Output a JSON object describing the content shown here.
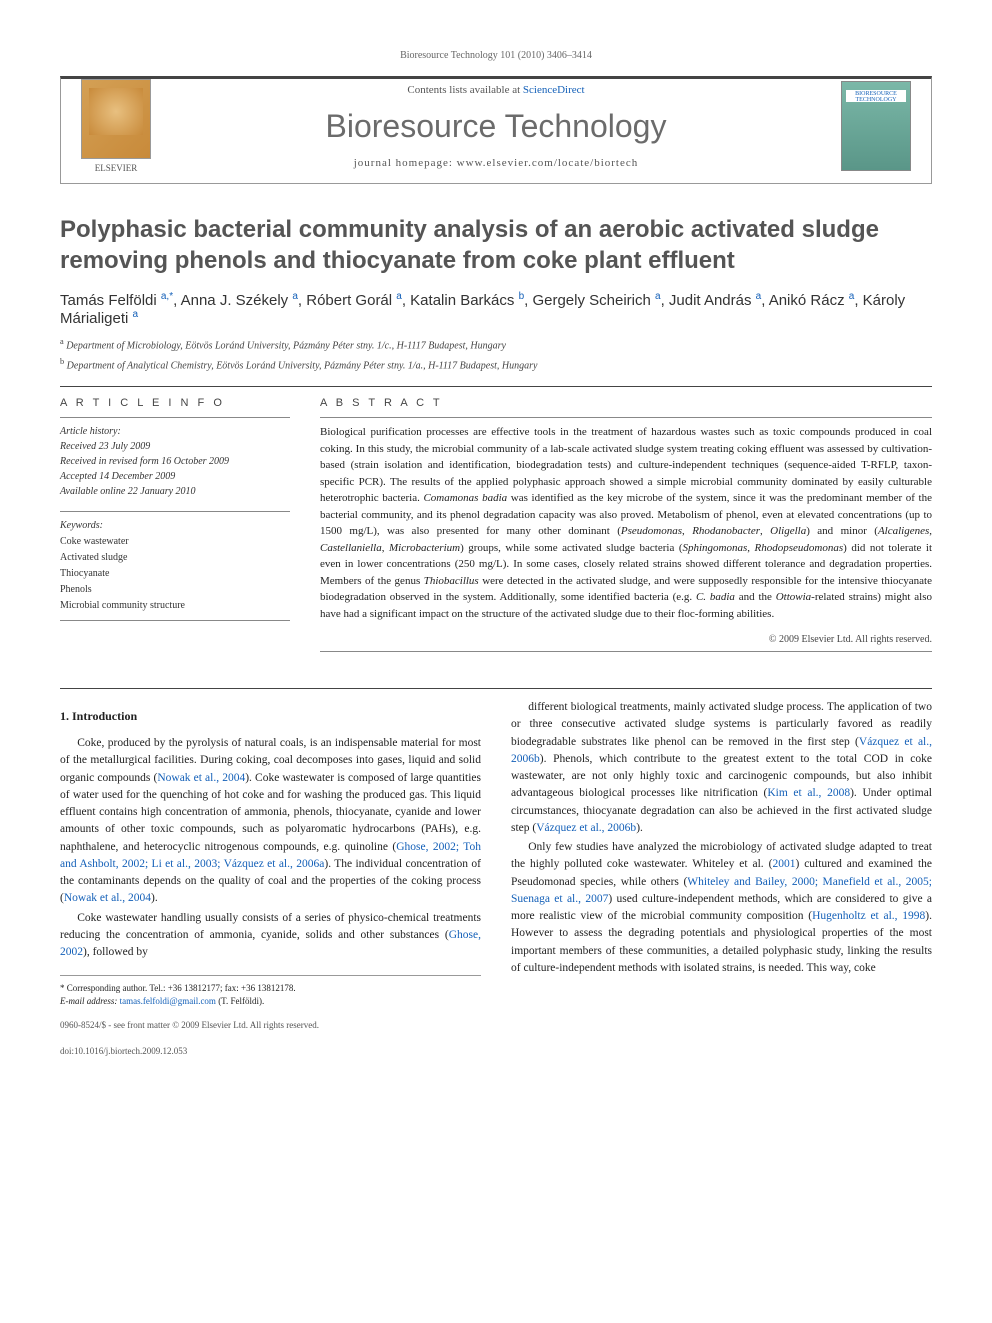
{
  "page_header": "Bioresource Technology 101 (2010) 3406–3414",
  "banner": {
    "contents_text": "Contents lists available at ",
    "contents_link": "ScienceDirect",
    "journal_name": "Bioresource Technology",
    "homepage_label": "journal homepage: ",
    "homepage_url": "www.elsevier.com/locate/biortech",
    "publisher": "ELSEVIER",
    "cover_text": "BIORESOURCE TECHNOLOGY"
  },
  "article": {
    "title": "Polyphasic bacterial community analysis of an aerobic activated sludge removing phenols and thiocyanate from coke plant effluent",
    "authors_html": "Tamás Felföldi <sup>a,*</sup>, Anna J. Székely <sup>a</sup>, Róbert Gorál <sup>a</sup>, Katalin Barkács <sup>b</sup>, Gergely Scheirich <sup>a</sup>, Judit András <sup>a</sup>, Anikó Rácz <sup>a</sup>, Károly Márialigeti <sup>a</sup>",
    "affiliations": [
      "a Department of Microbiology, Eötvös Loránd University, Pázmány Péter stny. 1/c., H-1117 Budapest, Hungary",
      "b Department of Analytical Chemistry, Eötvös Loránd University, Pázmány Péter stny. 1/a., H-1117 Budapest, Hungary"
    ]
  },
  "info": {
    "label": "A R T I C L E   I N F O",
    "history_title": "Article history:",
    "history": [
      "Received 23 July 2009",
      "Received in revised form 16 October 2009",
      "Accepted 14 December 2009",
      "Available online 22 January 2010"
    ],
    "keywords_title": "Keywords:",
    "keywords": [
      "Coke wastewater",
      "Activated sludge",
      "Thiocyanate",
      "Phenols",
      "Microbial community structure"
    ]
  },
  "abstract": {
    "label": "A B S T R A C T",
    "text": "Biological purification processes are effective tools in the treatment of hazardous wastes such as toxic compounds produced in coal coking. In this study, the microbial community of a lab-scale activated sludge system treating coking effluent was assessed by cultivation-based (strain isolation and identification, biodegradation tests) and culture-independent techniques (sequence-aided T-RFLP, taxon-specific PCR). The results of the applied polyphasic approach showed a simple microbial community dominated by easily culturable heterotrophic bacteria. Comamonas badia was identified as the key microbe of the system, since it was the predominant member of the bacterial community, and its phenol degradation capacity was also proved. Metabolism of phenol, even at elevated concentrations (up to 1500 mg/L), was also presented for many other dominant (Pseudomonas, Rhodanobacter, Oligella) and minor (Alcaligenes, Castellaniella, Microbacterium) groups, while some activated sludge bacteria (Sphingomonas, Rhodopseudomonas) did not tolerate it even in lower concentrations (250 mg/L). In some cases, closely related strains showed different tolerance and degradation properties. Members of the genus Thiobacillus were detected in the activated sludge, and were supposedly responsible for the intensive thiocyanate biodegradation observed in the system. Additionally, some identified bacteria (e.g. C. badia and the Ottowia-related strains) might also have had a significant impact on the structure of the activated sludge due to their floc-forming abilities.",
    "copyright": "© 2009 Elsevier Ltd. All rights reserved."
  },
  "body": {
    "intro_heading": "1. Introduction",
    "col1_p1": "Coke, produced by the pyrolysis of natural coals, is an indispensable material for most of the metallurgical facilities. During coking, coal decomposes into gases, liquid and solid organic compounds (Nowak et al., 2004). Coke wastewater is composed of large quantities of water used for the quenching of hot coke and for washing the produced gas. This liquid effluent contains high concentration of ammonia, phenols, thiocyanate, cyanide and lower amounts of other toxic compounds, such as polyaromatic hydrocarbons (PAHs), e.g. naphthalene, and heterocyclic nitrogenous compounds, e.g. quinoline (Ghose, 2002; Toh and Ashbolt, 2002; Li et al., 2003; Vázquez et al., 2006a). The individual concentration of the contaminants depends on the quality of coal and the properties of the coking process (Nowak et al., 2004).",
    "col1_p2": "Coke wastewater handling usually consists of a series of physico-chemical treatments reducing the concentration of ammonia, cyanide, solids and other substances (Ghose, 2002), followed by",
    "col2_p1": "different biological treatments, mainly activated sludge process. The application of two or three consecutive activated sludge systems is particularly favored as readily biodegradable substrates like phenol can be removed in the first step (Vázquez et al., 2006b). Phenols, which contribute to the greatest extent to the total COD in coke wastewater, are not only highly toxic and carcinogenic compounds, but also inhibit advantageous biological processes like nitrification (Kim et al., 2008). Under optimal circumstances, thiocyanate degradation can also be achieved in the first activated sludge step (Vázquez et al., 2006b).",
    "col2_p2": "Only few studies have analyzed the microbiology of activated sludge adapted to treat the highly polluted coke wastewater. Whiteley et al. (2001) cultured and examined the Pseudomonad species, while others (Whiteley and Bailey, 2000; Manefield et al., 2005; Suenaga et al., 2007) used culture-independent methods, which are considered to give a more realistic view of the microbial community composition (Hugenholtz et al., 1998). However to assess the degrading potentials and physiological properties of the most important members of these communities, a detailed polyphasic study, linking the results of culture-independent methods with isolated strains, is needed. This way, coke"
  },
  "footnote": {
    "corr": "* Corresponding author. Tel.: +36 13812177; fax: +36 13812178.",
    "email_label": "E-mail address: ",
    "email": "tamas.felfoldi@gmail.com",
    "email_person": " (T. Felföldi)."
  },
  "footer": {
    "line1": "0960-8524/$ - see front matter © 2009 Elsevier Ltd. All rights reserved.",
    "line2": "doi:10.1016/j.biortech.2009.12.053"
  },
  "colors": {
    "link": "#1460b8",
    "gray_text": "#6b6b6b",
    "border": "#444444"
  }
}
